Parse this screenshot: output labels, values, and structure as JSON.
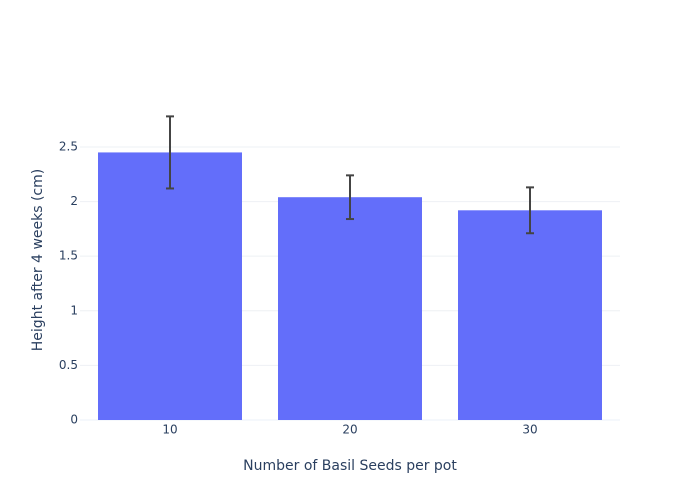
{
  "chart_data": {
    "type": "bar",
    "categories": [
      "10",
      "20",
      "30"
    ],
    "values": [
      2.45,
      2.04,
      1.92
    ],
    "error": [
      0.33,
      0.2,
      0.21
    ],
    "color": "#636efa",
    "xlabel": "Number of Basil Seeds per pot",
    "ylabel": "Height after 4 weeks (cm)",
    "ylim": [
      0,
      2.93
    ],
    "yticks": [
      0,
      0.5,
      1,
      1.5,
      2,
      2.5
    ],
    "grid": true
  }
}
